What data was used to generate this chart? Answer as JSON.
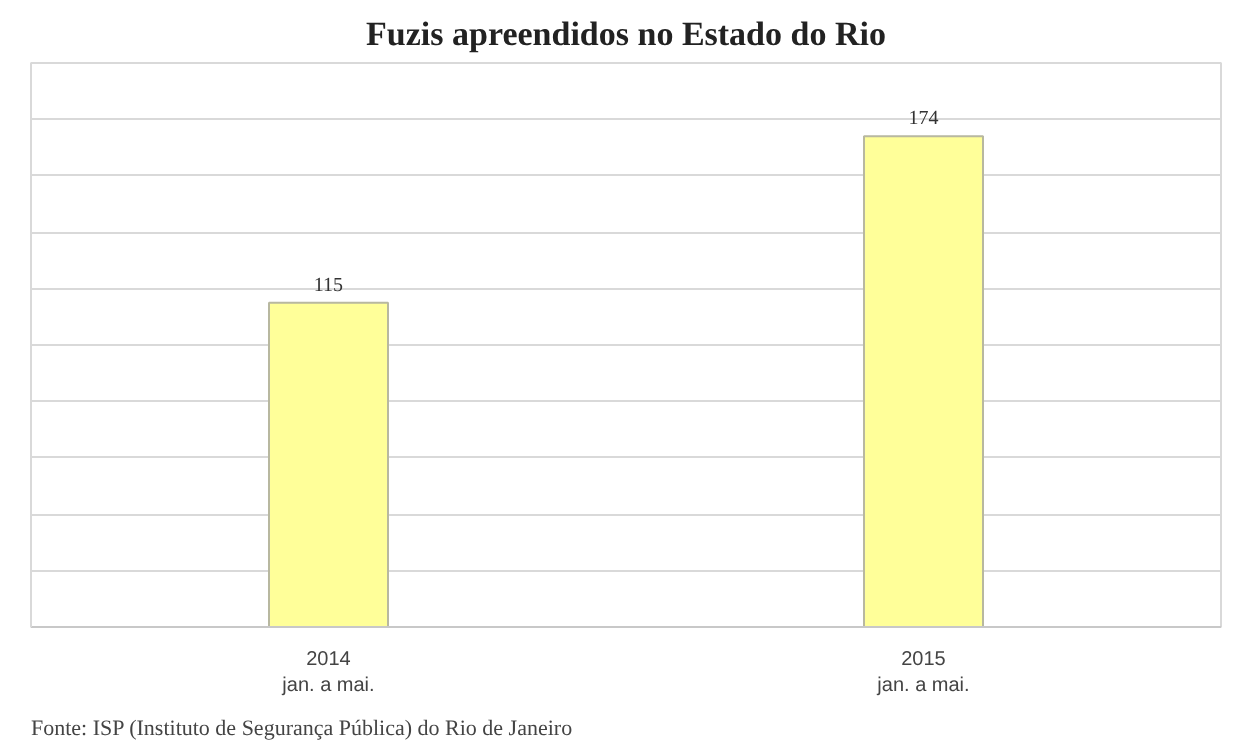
{
  "chart_data": {
    "type": "bar",
    "title": "Fuzis apreendidos no Estado do Rio",
    "categories": [
      "2014\njan. a mai.",
      "2015\njan. a mai."
    ],
    "values": [
      115,
      174
    ],
    "color": "#ffff99",
    "data_labels": true,
    "ylim": [
      0,
      200
    ],
    "yticks": [
      {
        "value": 0,
        "label": null
      },
      {
        "value": 20,
        "label": null
      },
      {
        "value": 40,
        "label": null
      },
      {
        "value": 60,
        "label": null
      },
      {
        "value": 80,
        "label": null
      },
      {
        "value": 100,
        "label": null
      },
      {
        "value": 120,
        "label": null
      },
      {
        "value": 140,
        "label": null
      },
      {
        "value": 160,
        "label": null
      },
      {
        "value": 180,
        "label": null
      }
    ],
    "grid": "y",
    "tick_labels": "x",
    "annotations": [
      "Fonte: ISP (Instituto de Segurança Pública) do Rio de Janeiro"
    ]
  }
}
